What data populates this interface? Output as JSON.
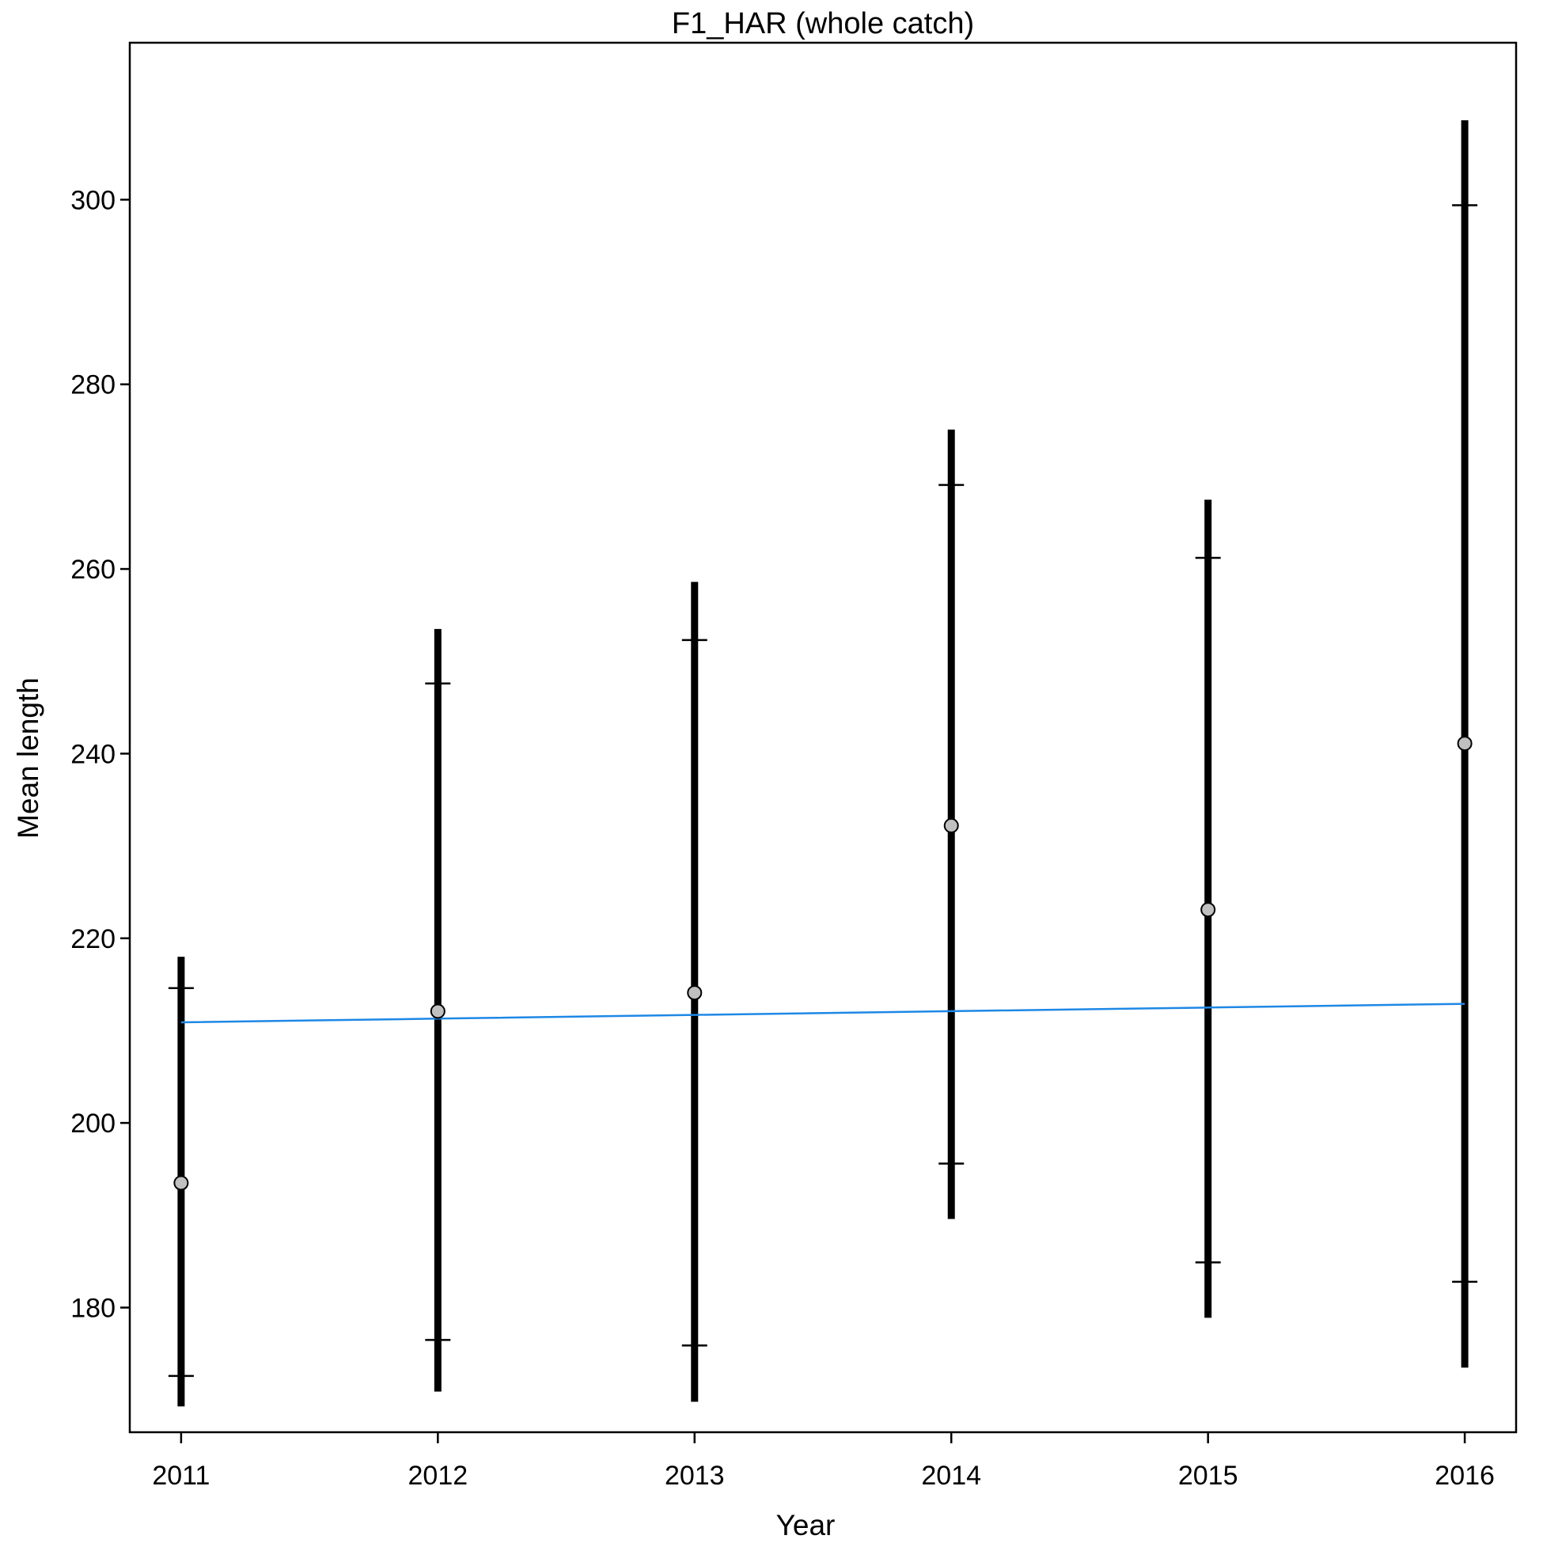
{
  "chart_data": {
    "type": "scatter",
    "title": "F1_HAR (whole catch)",
    "xlabel": "Year",
    "ylabel": "Mean length",
    "x": [
      2011,
      2012,
      2013,
      2014,
      2015,
      2016
    ],
    "xlim": [
      2010.8,
      2016.2
    ],
    "ylim": [
      166.5,
      317
    ],
    "xticks": [
      2011,
      2012,
      2013,
      2014,
      2015,
      2016
    ],
    "yticks": [
      180,
      200,
      220,
      240,
      260,
      280,
      300
    ],
    "grid": false,
    "series": [
      {
        "role": "mean",
        "values": [
          193.5,
          212.1,
          214.1,
          232.2,
          223.1,
          241.1
        ],
        "color": "#c0c0c0"
      },
      {
        "role": "interval_outer_low",
        "values": [
          169.3,
          170.9,
          169.8,
          189.6,
          178.9,
          173.5
        ]
      },
      {
        "role": "interval_outer_high",
        "values": [
          218.0,
          253.5,
          258.6,
          275.1,
          267.5,
          308.6
        ]
      },
      {
        "role": "interval_inner_low",
        "values": [
          172.6,
          176.5,
          175.9,
          195.6,
          184.9,
          182.8
        ]
      },
      {
        "role": "interval_inner_high",
        "values": [
          214.6,
          247.6,
          252.3,
          269.1,
          261.2,
          299.4
        ]
      },
      {
        "role": "trend",
        "type": "line",
        "values": [
          210.9,
          211.3,
          211.7,
          212.1,
          212.5,
          212.9
        ],
        "color": "#1e88e5"
      }
    ]
  }
}
